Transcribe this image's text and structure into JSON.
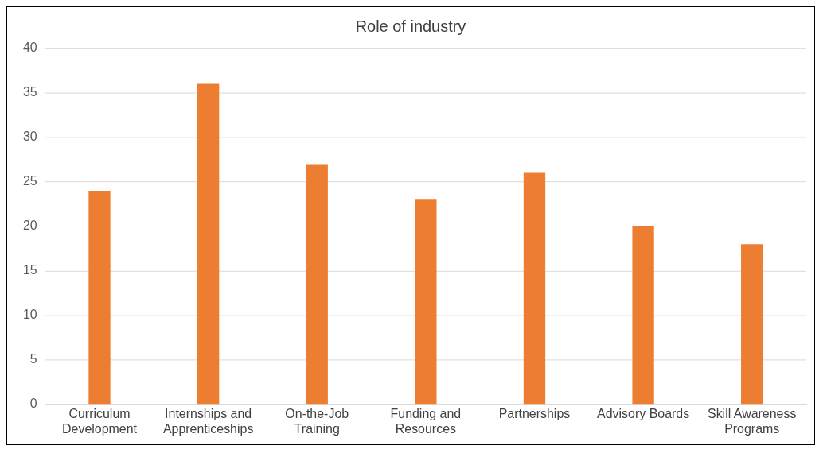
{
  "chart_data": {
    "type": "bar",
    "title": "Role of industry",
    "categories": [
      "Curriculum Development",
      "Internships and Apprenticeships",
      "On-the-Job Training",
      "Funding and Resources",
      "Partnerships",
      "Advisory Boards",
      "Skill Awareness Programs"
    ],
    "values": [
      24,
      36,
      27,
      23,
      26,
      20,
      18
    ],
    "color": "#ed7d31",
    "ylim": [
      0,
      40
    ],
    "yticks": [
      0,
      5,
      10,
      15,
      20,
      25,
      30,
      35,
      40
    ],
    "grid": "y",
    "legend": false
  }
}
